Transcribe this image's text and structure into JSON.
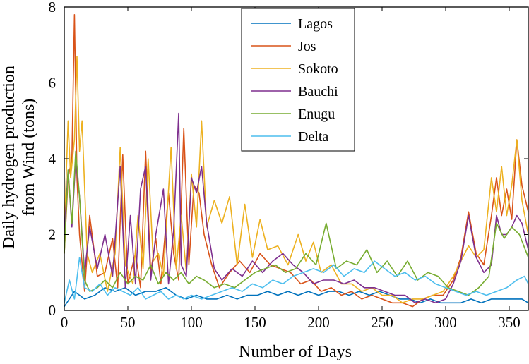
{
  "chart_data": {
    "type": "line",
    "title": "",
    "xlabel": "Number of Days",
    "ylabel": [
      "Daily hydrogen production",
      "from Wind (tons)"
    ],
    "xlim": [
      0,
      365
    ],
    "ylim": [
      0,
      8
    ],
    "xticks": [
      0,
      50,
      100,
      150,
      200,
      250,
      300,
      350
    ],
    "yticks": [
      0,
      2,
      4,
      6,
      8
    ],
    "legend_position": "top-center",
    "series": [
      {
        "name": "Lagos",
        "color": "#0072BD",
        "x": [
          0,
          8,
          16,
          24,
          32,
          40,
          48,
          56,
          64,
          72,
          80,
          88,
          96,
          104,
          112,
          120,
          128,
          136,
          144,
          152,
          160,
          168,
          176,
          184,
          192,
          200,
          208,
          216,
          224,
          232,
          240,
          248,
          256,
          264,
          272,
          280,
          288,
          296,
          304,
          312,
          320,
          328,
          336,
          344,
          352,
          360,
          365
        ],
        "values": [
          0.1,
          0.5,
          0.3,
          0.4,
          0.6,
          0.5,
          0.6,
          0.4,
          0.5,
          0.5,
          0.6,
          0.4,
          0.3,
          0.4,
          0.3,
          0.3,
          0.4,
          0.3,
          0.4,
          0.4,
          0.5,
          0.4,
          0.5,
          0.4,
          0.5,
          0.4,
          0.5,
          0.5,
          0.4,
          0.5,
          0.4,
          0.5,
          0.4,
          0.3,
          0.3,
          0.2,
          0.3,
          0.2,
          0.2,
          0.2,
          0.3,
          0.2,
          0.3,
          0.3,
          0.3,
          0.3,
          0.2
        ]
      },
      {
        "name": "Jos",
        "color": "#D95319",
        "x": [
          0,
          3,
          6,
          8,
          10,
          12,
          16,
          20,
          26,
          32,
          38,
          42,
          46,
          50,
          56,
          60,
          64,
          68,
          72,
          76,
          82,
          86,
          90,
          94,
          98,
          102,
          106,
          110,
          116,
          122,
          130,
          138,
          146,
          154,
          162,
          170,
          178,
          186,
          194,
          202,
          210,
          218,
          226,
          234,
          242,
          250,
          258,
          266,
          274,
          282,
          290,
          298,
          306,
          312,
          318,
          324,
          330,
          336,
          340,
          344,
          348,
          352,
          356,
          360,
          365
        ],
        "values": [
          1.5,
          3.5,
          4.0,
          7.8,
          3.5,
          2.0,
          0.5,
          2.5,
          0.9,
          1.0,
          1.9,
          0.6,
          4.1,
          0.7,
          1.5,
          0.6,
          4.2,
          1.0,
          1.9,
          0.7,
          3.1,
          1.5,
          0.8,
          4.8,
          1.2,
          3.3,
          3.1,
          2.0,
          1.2,
          0.6,
          1.0,
          1.3,
          1.0,
          1.5,
          1.2,
          1.1,
          1.0,
          0.7,
          0.8,
          0.5,
          0.6,
          0.4,
          0.5,
          0.3,
          0.4,
          0.3,
          0.2,
          0.2,
          0.1,
          0.3,
          0.4,
          0.4,
          0.8,
          1.4,
          2.6,
          1.5,
          1.2,
          2.5,
          3.5,
          2.5,
          3.2,
          2.4,
          4.5,
          3.3,
          2.6
        ]
      },
      {
        "name": "Sokoto",
        "color": "#EDB120",
        "x": [
          0,
          3,
          5,
          8,
          10,
          12,
          14,
          18,
          22,
          28,
          34,
          40,
          44,
          48,
          54,
          58,
          62,
          66,
          70,
          74,
          78,
          84,
          88,
          92,
          96,
          100,
          104,
          108,
          112,
          118,
          124,
          130,
          136,
          142,
          148,
          154,
          160,
          168,
          176,
          184,
          190,
          196,
          202,
          210,
          218,
          226,
          234,
          242,
          250,
          258,
          266,
          274,
          282,
          290,
          298,
          306,
          312,
          318,
          324,
          330,
          336,
          340,
          344,
          348,
          352,
          356,
          360,
          365
        ],
        "values": [
          2.0,
          5.0,
          3.5,
          4.5,
          6.7,
          4.2,
          5.0,
          1.5,
          1.0,
          1.5,
          0.5,
          1.5,
          4.3,
          1.2,
          0.7,
          2.5,
          1.1,
          4.0,
          1.3,
          1.5,
          0.9,
          4.3,
          1.1,
          2.5,
          1.0,
          3.6,
          2.2,
          5.0,
          2.2,
          2.9,
          2.3,
          3.0,
          1.2,
          2.8,
          1.4,
          2.4,
          1.6,
          1.7,
          1.2,
          2.0,
          1.3,
          1.8,
          1.0,
          1.2,
          0.7,
          0.7,
          0.5,
          0.6,
          0.4,
          0.4,
          0.2,
          0.3,
          0.3,
          0.4,
          0.5,
          0.9,
          1.3,
          1.7,
          1.4,
          1.6,
          3.5,
          2.6,
          3.8,
          2.5,
          3.3,
          4.5,
          2.9,
          2.0
        ]
      },
      {
        "name": "Bauchi",
        "color": "#7E2F8E",
        "x": [
          0,
          3,
          6,
          9,
          12,
          16,
          20,
          26,
          32,
          38,
          44,
          48,
          52,
          56,
          60,
          64,
          68,
          72,
          78,
          82,
          86,
          90,
          92,
          96,
          100,
          104,
          108,
          112,
          118,
          124,
          132,
          140,
          148,
          156,
          164,
          172,
          180,
          188,
          196,
          204,
          212,
          220,
          228,
          236,
          244,
          252,
          260,
          268,
          276,
          284,
          292,
          300,
          306,
          312,
          318,
          324,
          330,
          336,
          340,
          344,
          348,
          352,
          356,
          360,
          365
        ],
        "values": [
          2.0,
          3.7,
          2.2,
          4.0,
          3.0,
          1.0,
          2.2,
          1.1,
          2.0,
          0.9,
          3.8,
          0.6,
          2.5,
          0.7,
          3.2,
          3.8,
          0.8,
          2.0,
          3.2,
          0.7,
          2.1,
          5.2,
          1.2,
          0.9,
          3.5,
          3.1,
          3.8,
          2.3,
          1.1,
          0.8,
          1.1,
          0.9,
          1.3,
          1.0,
          1.3,
          1.5,
          1.2,
          1.0,
          0.7,
          0.8,
          0.8,
          0.7,
          0.8,
          0.6,
          0.6,
          0.5,
          0.4,
          0.4,
          0.2,
          0.3,
          0.2,
          0.3,
          0.7,
          1.3,
          2.5,
          1.4,
          1.0,
          1.2,
          2.5,
          2.0,
          2.0,
          2.2,
          2.5,
          2.3,
          1.6
        ]
      },
      {
        "name": "Enugu",
        "color": "#77AC30",
        "x": [
          0,
          3,
          6,
          9,
          12,
          16,
          20,
          26,
          32,
          38,
          44,
          50,
          56,
          62,
          68,
          74,
          80,
          86,
          92,
          98,
          104,
          110,
          118,
          126,
          134,
          142,
          150,
          158,
          166,
          174,
          182,
          190,
          198,
          206,
          214,
          222,
          230,
          238,
          246,
          254,
          262,
          270,
          278,
          286,
          294,
          302,
          310,
          318,
          326,
          334,
          340,
          346,
          352,
          358,
          365
        ],
        "values": [
          1.5,
          3.7,
          2.3,
          4.2,
          3.0,
          0.8,
          0.5,
          0.6,
          0.8,
          0.6,
          1.0,
          0.7,
          0.9,
          0.8,
          1.2,
          0.7,
          1.0,
          0.8,
          1.0,
          0.7,
          0.9,
          0.8,
          0.6,
          0.7,
          0.6,
          0.8,
          1.0,
          1.1,
          1.2,
          1.0,
          1.1,
          1.5,
          1.2,
          2.3,
          1.1,
          1.3,
          1.2,
          1.6,
          1.0,
          1.3,
          0.9,
          1.3,
          0.8,
          1.0,
          0.9,
          0.6,
          0.5,
          0.4,
          0.6,
          0.9,
          2.3,
          1.9,
          2.2,
          2.0,
          1.4
        ]
      },
      {
        "name": "Delta",
        "color": "#4DBEEE",
        "x": [
          0,
          4,
          8,
          12,
          16,
          22,
          28,
          34,
          40,
          46,
          52,
          58,
          64,
          70,
          76,
          82,
          88,
          94,
          100,
          108,
          116,
          124,
          132,
          140,
          148,
          156,
          164,
          172,
          180,
          188,
          196,
          204,
          212,
          220,
          228,
          236,
          244,
          252,
          260,
          268,
          276,
          284,
          292,
          300,
          308,
          316,
          324,
          332,
          340,
          348,
          356,
          362,
          365
        ],
        "values": [
          0.2,
          0.8,
          0.3,
          1.4,
          0.6,
          0.5,
          0.7,
          0.4,
          0.6,
          0.5,
          0.4,
          0.6,
          0.3,
          0.4,
          0.5,
          0.3,
          0.4,
          0.3,
          0.4,
          0.3,
          0.4,
          0.5,
          0.6,
          0.5,
          0.7,
          0.6,
          0.8,
          0.7,
          0.9,
          1.0,
          1.1,
          1.0,
          1.2,
          0.9,
          1.1,
          1.0,
          1.3,
          1.1,
          0.9,
          1.0,
          0.8,
          0.9,
          0.7,
          0.6,
          0.5,
          0.4,
          0.5,
          0.4,
          0.5,
          0.6,
          0.8,
          0.9,
          0.7
        ]
      }
    ]
  }
}
